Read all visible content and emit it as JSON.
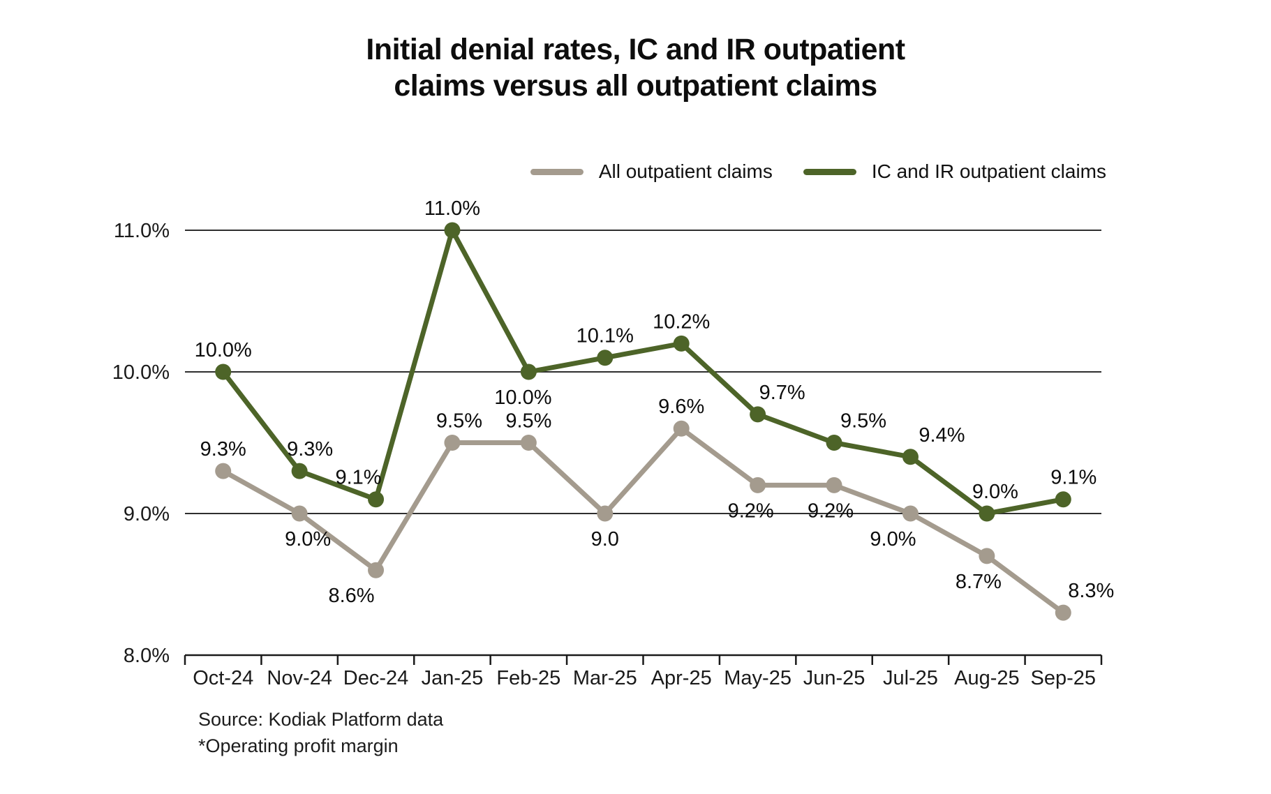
{
  "source": {
    "line1": "Source: Kodiak Platform data",
    "line2": "*Operating profit margin"
  },
  "chart_data": {
    "type": "line",
    "title": "Initial denial rates, IC and IR outpatient claims versus all outpatient claims",
    "title_lines": [
      "Initial denial rates, IC and IR outpatient",
      "claims versus all outpatient claims"
    ],
    "categories": [
      "Oct-24",
      "Nov-24",
      "Dec-24",
      "Jan-25",
      "Feb-25",
      "Mar-25",
      "Apr-25",
      "May-25",
      "Jun-25",
      "Jul-25",
      "Aug-25",
      "Sep-25"
    ],
    "series": [
      {
        "name": "All outpatient claims",
        "color": "#a49b8e",
        "values": [
          9.3,
          9.0,
          8.6,
          9.5,
          9.5,
          9.0,
          9.6,
          9.2,
          9.2,
          9.0,
          8.7,
          8.3
        ],
        "point_labels": [
          {
            "text": "9.3%",
            "pos": "above",
            "dx": 0
          },
          {
            "text": "9.0%",
            "pos": "below",
            "dx": 12
          },
          {
            "text": "8.6%",
            "pos": "below",
            "dx": -35
          },
          {
            "text": "9.5%",
            "pos": "above",
            "dx": 10
          },
          {
            "text": "9.5%",
            "pos": "above",
            "dx": 0
          },
          {
            "text": "9.0",
            "pos": "below",
            "dx": 0
          },
          {
            "text": "9.6%",
            "pos": "above",
            "dx": 0
          },
          {
            "text": "9.2%",
            "pos": "below",
            "dx": -10
          },
          {
            "text": "9.2%",
            "pos": "below",
            "dx": -5
          },
          {
            "text": "9.0%",
            "pos": "below",
            "dx": -25
          },
          {
            "text": "8.7%",
            "pos": "below",
            "dx": -12
          },
          {
            "text": "8.3%",
            "pos": "above",
            "dx": 40
          }
        ]
      },
      {
        "name": "IC and IR outpatient claims",
        "color": "#4d6428",
        "values": [
          10.0,
          9.3,
          9.1,
          11.0,
          10.0,
          10.1,
          10.2,
          9.7,
          9.5,
          9.4,
          9.0,
          9.1
        ],
        "point_labels": [
          {
            "text": "10.0%",
            "pos": "above",
            "dx": 0
          },
          {
            "text": "9.3%",
            "pos": "above",
            "dx": 15
          },
          {
            "text": "9.1%",
            "pos": "above",
            "dx": -25
          },
          {
            "text": "11.0%",
            "pos": "above",
            "dx": 0
          },
          {
            "text": "10.0%",
            "pos": "below",
            "dx": -8
          },
          {
            "text": "10.1%",
            "pos": "above",
            "dx": 0
          },
          {
            "text": "10.2%",
            "pos": "above",
            "dx": 0
          },
          {
            "text": "9.7%",
            "pos": "above",
            "dx": 35
          },
          {
            "text": "9.5%",
            "pos": "above",
            "dx": 42
          },
          {
            "text": "9.4%",
            "pos": "above",
            "dx": 45
          },
          {
            "text": "9.0%",
            "pos": "above",
            "dx": 12
          },
          {
            "text": "9.1%",
            "pos": "above",
            "dx": 15
          }
        ]
      }
    ],
    "yticks": [
      {
        "value": 11.0,
        "label": "11.0%"
      },
      {
        "value": 10.0,
        "label": "10.0%"
      },
      {
        "value": 9.0,
        "label": "9.0%"
      },
      {
        "value": 8.0,
        "label": "8.0%"
      }
    ],
    "ylim": [
      8.0,
      11.0
    ],
    "xlabel": "",
    "ylabel": "",
    "grid": "horizontal",
    "legend_position": "top-right"
  }
}
